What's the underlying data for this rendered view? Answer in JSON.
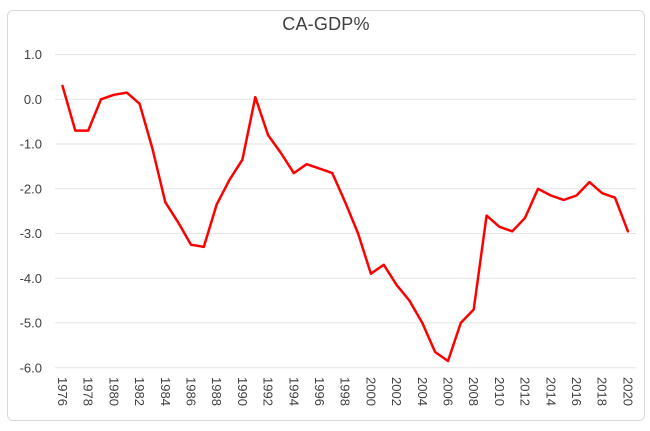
{
  "chart_data": {
    "type": "line",
    "title": "CA-GDP%",
    "xlabel": "",
    "ylabel": "",
    "legend": "none",
    "grid": "horizontal-major-only",
    "ylim": [
      -6.0,
      1.0
    ],
    "ytick_step": 1.0,
    "ytick_labels": [
      "1.0",
      "0.0",
      "-1.0",
      "-2.0",
      "-3.0",
      "-4.0",
      "-5.0",
      "-6.0"
    ],
    "xtick_labels": [
      "1976",
      "1978",
      "1980",
      "1982",
      "1984",
      "1986",
      "1988",
      "1990",
      "1992",
      "1994",
      "1996",
      "1998",
      "2000",
      "2002",
      "2004",
      "2006",
      "2008",
      "2010",
      "2012",
      "2014",
      "2016",
      "2018",
      "2020"
    ],
    "xtick_rotation_deg": 90,
    "years": [
      1976,
      1977,
      1978,
      1979,
      1980,
      1981,
      1982,
      1983,
      1984,
      1985,
      1986,
      1987,
      1988,
      1989,
      1990,
      1991,
      1992,
      1993,
      1994,
      1995,
      1996,
      1997,
      1998,
      1999,
      2000,
      2001,
      2002,
      2003,
      2004,
      2005,
      2006,
      2007,
      2008,
      2009,
      2010,
      2011,
      2012,
      2013,
      2014,
      2015,
      2016,
      2017,
      2018,
      2019,
      2020
    ],
    "series": [
      {
        "name": "CA-GDP%",
        "color": "#ff0000",
        "values": [
          0.3,
          -0.7,
          -0.7,
          0.0,
          0.1,
          0.15,
          -0.1,
          -1.1,
          -2.3,
          -2.75,
          -3.25,
          -3.3,
          -2.35,
          -1.8,
          -1.35,
          0.05,
          -0.8,
          -1.2,
          -1.65,
          -1.45,
          -1.55,
          -1.65,
          -2.3,
          -3.0,
          -3.9,
          -3.7,
          -4.15,
          -4.5,
          -5.0,
          -5.65,
          -5.85,
          -5.0,
          -4.7,
          -2.6,
          -2.85,
          -2.95,
          -2.65,
          -2.0,
          -2.15,
          -2.25,
          -2.15,
          -1.85,
          -2.1,
          -2.2,
          -2.95
        ]
      }
    ],
    "colors": {
      "line": "#ff0000",
      "gridline": "#e3e3e3",
      "frame_border": "#d9d9d9",
      "text": "#3f3f3f",
      "background": "#ffffff"
    }
  }
}
